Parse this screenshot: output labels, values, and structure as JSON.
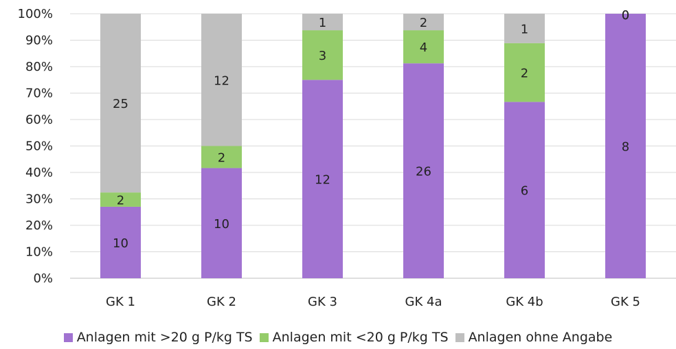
{
  "chart_data": {
    "type": "bar",
    "stacked": true,
    "percent_stacked": true,
    "categories": [
      "GK 1",
      "GK 2",
      "GK 3",
      "GK 4a",
      "GK 4b",
      "GK 5"
    ],
    "series": [
      {
        "name": "Anlagen mit >20 g P/kg TS",
        "color": "#a173d1",
        "values": [
          10,
          10,
          12,
          26,
          6,
          8
        ]
      },
      {
        "name": "Anlagen mit <20 g P/kg TS",
        "color": "#95cc6a",
        "values": [
          2,
          2,
          3,
          4,
          2,
          0
        ]
      },
      {
        "name": "Anlagen ohne Angabe",
        "color": "#bfbfbf",
        "values": [
          25,
          12,
          1,
          2,
          1,
          0
        ]
      }
    ],
    "y_ticks": [
      "0%",
      "10%",
      "20%",
      "30%",
      "40%",
      "50%",
      "60%",
      "70%",
      "80%",
      "90%",
      "100%"
    ],
    "ylim": [
      0,
      100
    ],
    "grid": true,
    "legend_position": "bottom"
  }
}
